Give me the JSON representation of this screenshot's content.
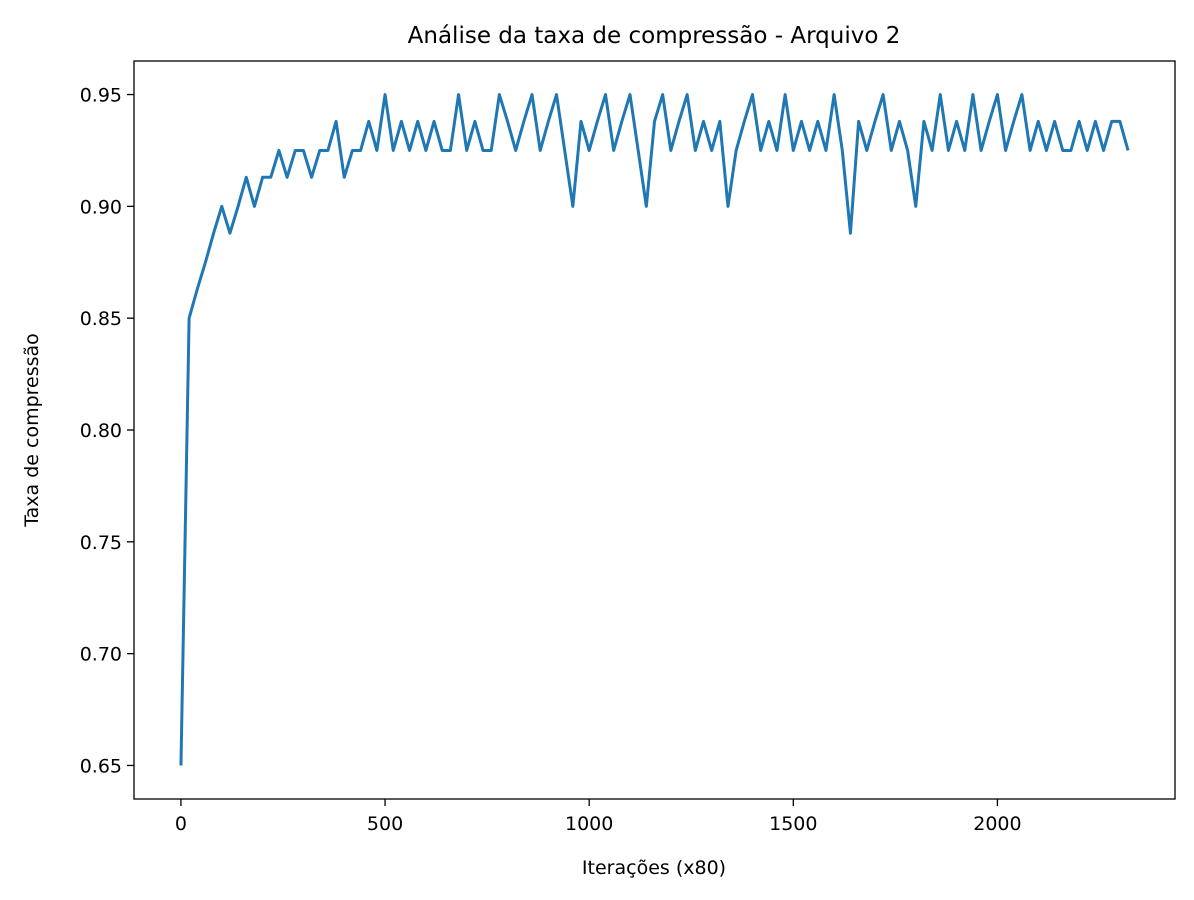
{
  "chart_data": {
    "type": "line",
    "title": "Análise da taxa de compressão - Arquivo 2",
    "xlabel": "Iterações (x80)",
    "ylabel": "Taxa de compressão",
    "xlim": [
      -115,
      2435
    ],
    "ylim": [
      0.635,
      0.965
    ],
    "xticks": [
      0,
      500,
      1000,
      1500,
      2000
    ],
    "xtick_labels": [
      "0",
      "500",
      "1000",
      "1500",
      "2000"
    ],
    "yticks": [
      0.65,
      0.7,
      0.75,
      0.8,
      0.85,
      0.9,
      0.95
    ],
    "ytick_labels": [
      "0.65",
      "0.70",
      "0.75",
      "0.80",
      "0.85",
      "0.90",
      "0.95"
    ],
    "grid": false,
    "legend": "none",
    "series": [
      {
        "color": "#1f77b4",
        "x_start": 0,
        "x_end": 2320,
        "x_step": 20,
        "values": [
          0.65,
          0.85,
          0.863,
          0.875,
          0.888,
          0.9,
          0.888,
          0.9,
          0.913,
          0.9,
          0.913,
          0.913,
          0.925,
          0.913,
          0.925,
          0.925,
          0.913,
          0.925,
          0.925,
          0.938,
          0.913,
          0.925,
          0.925,
          0.938,
          0.925,
          0.95,
          0.925,
          0.938,
          0.925,
          0.938,
          0.925,
          0.938,
          0.925,
          0.925,
          0.95,
          0.925,
          0.938,
          0.925,
          0.925,
          0.95,
          0.938,
          0.925,
          0.938,
          0.95,
          0.925,
          0.938,
          0.95,
          0.925,
          0.9,
          0.938,
          0.925,
          0.938,
          0.95,
          0.925,
          0.938,
          0.95,
          0.925,
          0.9,
          0.938,
          0.95,
          0.925,
          0.938,
          0.95,
          0.925,
          0.938,
          0.925,
          0.938,
          0.9,
          0.925,
          0.938,
          0.95,
          0.925,
          0.938,
          0.925,
          0.95,
          0.925,
          0.938,
          0.925,
          0.938,
          0.925,
          0.95,
          0.925,
          0.888,
          0.938,
          0.925,
          0.938,
          0.95,
          0.925,
          0.938,
          0.925,
          0.9,
          0.938,
          0.925,
          0.95,
          0.925,
          0.938,
          0.925,
          0.95,
          0.925,
          0.938,
          0.95,
          0.925,
          0.938,
          0.95,
          0.925,
          0.938,
          0.925,
          0.938,
          0.925,
          0.925,
          0.938,
          0.925,
          0.938,
          0.925,
          0.938,
          0.938,
          0.925
        ]
      }
    ]
  }
}
